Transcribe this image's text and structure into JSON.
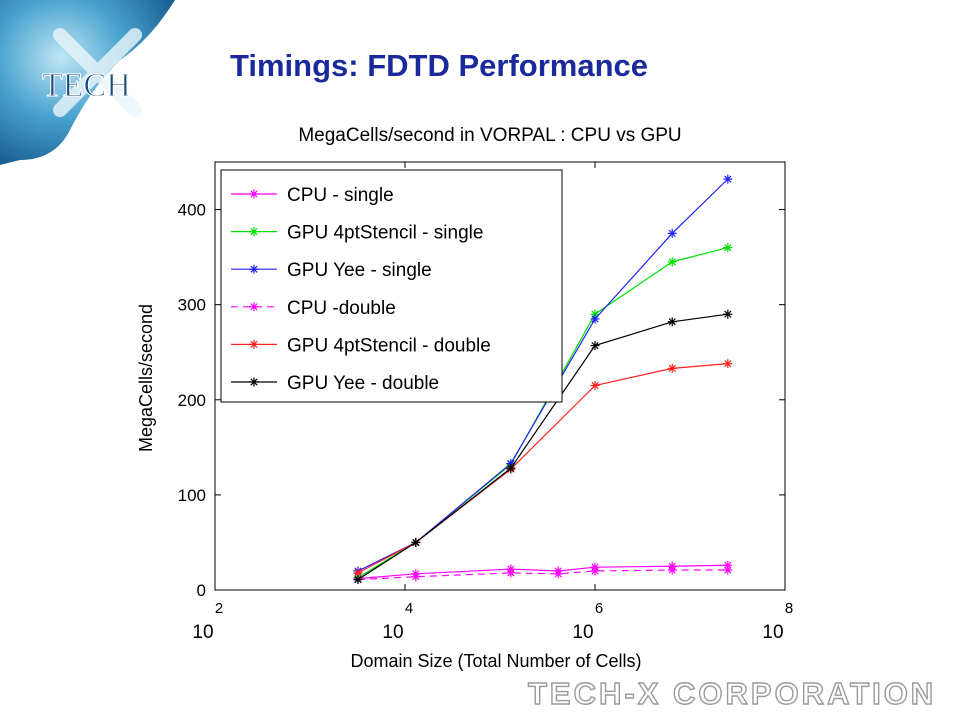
{
  "slide": {
    "title": "Timings: FDTD Performance",
    "logo_text": "TECH",
    "footer_text": "TECH-X CORPORATION",
    "title_color": "#1a2a9c"
  },
  "chart_data": {
    "type": "line",
    "title": "MegaCells/second in VORPAL : CPU vs GPU",
    "xlabel": "Domain Size (Total Number of Cells)",
    "ylabel": "MegaCells/second",
    "xscale": "log",
    "xlim": [
      100,
      100000000
    ],
    "ylim": [
      0,
      450
    ],
    "x_ticks": [
      {
        "base": "10",
        "exp": "2",
        "value": 100
      },
      {
        "base": "10",
        "exp": "4",
        "value": 10000
      },
      {
        "base": "10",
        "exp": "6",
        "value": 1000000
      },
      {
        "base": "10",
        "exp": "8",
        "value": 100000000
      }
    ],
    "y_ticks": [
      0,
      100,
      200,
      300,
      400
    ],
    "legend_position": "top-left",
    "grid": false,
    "series": [
      {
        "name": "CPU - single",
        "color": "#ff00ff",
        "dash": "solid",
        "x": [
          3200,
          13000,
          130000,
          410000,
          1000000,
          6500000,
          25000000
        ],
        "y": [
          12,
          17,
          22,
          20,
          24,
          25,
          26
        ]
      },
      {
        "name": "GPU 4ptStencil - single",
        "color": "#00e000",
        "dash": "solid",
        "x": [
          3200,
          13000,
          130000,
          1000000,
          6500000,
          25000000
        ],
        "y": [
          13,
          50,
          132,
          290,
          345,
          360
        ]
      },
      {
        "name": "GPU Yee - single",
        "color": "#2020ff",
        "dash": "solid",
        "x": [
          3200,
          13000,
          130000,
          1000000,
          6500000,
          25000000
        ],
        "y": [
          20,
          50,
          133,
          285,
          375,
          432
        ]
      },
      {
        "name": "CPU -double",
        "color": "#ff00ff",
        "dash": "dashed",
        "x": [
          3200,
          13000,
          130000,
          410000,
          1000000,
          6500000,
          25000000
        ],
        "y": [
          11,
          14,
          18,
          17,
          20,
          21,
          21
        ]
      },
      {
        "name": "GPU 4ptStencil - double",
        "color": "#ff2020",
        "dash": "solid",
        "x": [
          3200,
          13000,
          130000,
          1000000,
          6500000,
          25000000
        ],
        "y": [
          18,
          50,
          127,
          215,
          233,
          238
        ]
      },
      {
        "name": "GPU Yee - double",
        "color": "#000000",
        "dash": "solid",
        "x": [
          3200,
          13000,
          130000,
          1000000,
          6500000,
          25000000
        ],
        "y": [
          11,
          50,
          128,
          257,
          282,
          290
        ]
      }
    ]
  }
}
